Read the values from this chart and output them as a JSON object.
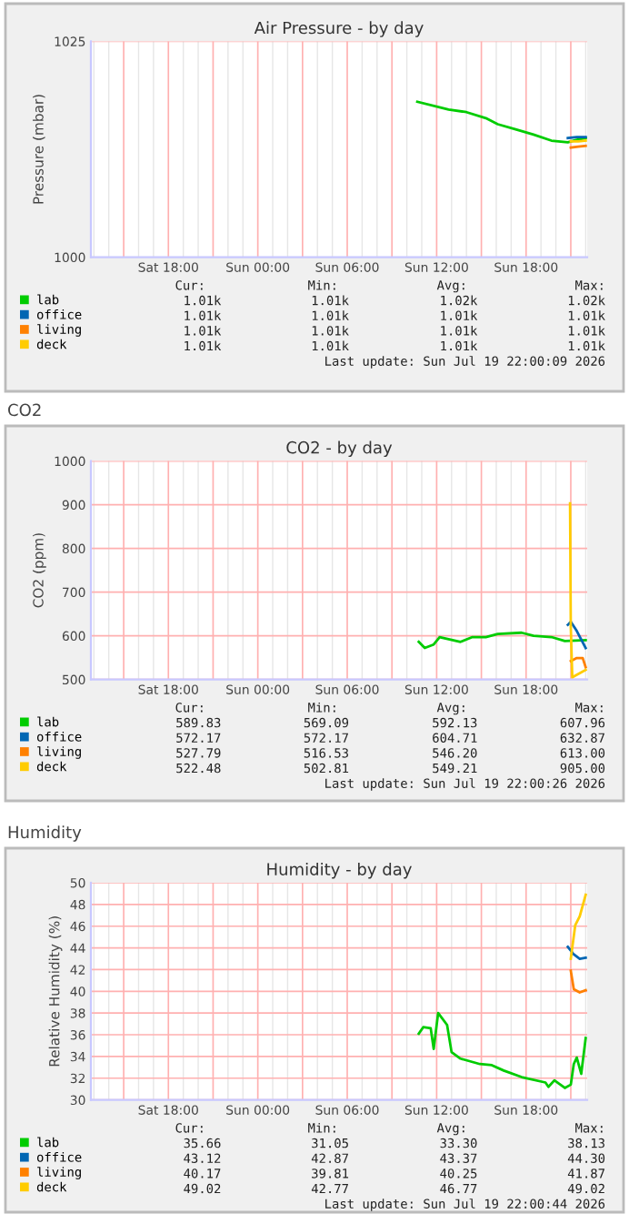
{
  "chart_data": [
    {
      "type": "line",
      "title": "Air Pressure - by day",
      "ylabel": "Pressure (mbar)",
      "xlim": [
        "2026-07-18T12:48",
        "2026-07-19T22:06"
      ],
      "ylim": [
        1000,
        1025
      ],
      "yticks": [
        1000,
        1025
      ],
      "xticks": [
        {
          "value": "2026-07-18T15:00",
          "label": null
        },
        {
          "value": "2026-07-18T18:00",
          "label": "Sat 18:00"
        },
        {
          "value": "2026-07-18T21:00",
          "label": null
        },
        {
          "value": "2026-07-19T00:00",
          "label": "Sun 00:00"
        },
        {
          "value": "2026-07-19T03:00",
          "label": null
        },
        {
          "value": "2026-07-19T06:00",
          "label": "Sun 06:00"
        },
        {
          "value": "2026-07-19T09:00",
          "label": null
        },
        {
          "value": "2026-07-19T12:00",
          "label": "Sun 12:00"
        },
        {
          "value": "2026-07-19T15:00",
          "label": null
        },
        {
          "value": "2026-07-19T18:00",
          "label": "Sun 18:00"
        },
        {
          "value": "2026-07-19T21:00",
          "label": null
        }
      ],
      "grid": "x",
      "legend": "bottom",
      "series": [
        {
          "name": "lab",
          "color": "#00cc00",
          "x": [
            "2026-07-19T10:42",
            "2026-07-19T12:48",
            "2026-07-19T14:00",
            "2026-07-19T15:18",
            "2026-07-19T16:06",
            "2026-07-19T17:18",
            "2026-07-19T18:30",
            "2026-07-19T19:42",
            "2026-07-19T20:48",
            "2026-07-19T21:24",
            "2026-07-19T22:00"
          ],
          "values": [
            1018.0,
            1017.1,
            1016.8,
            1016.1,
            1015.4,
            1014.8,
            1014.2,
            1013.5,
            1013.3,
            1013.6,
            1013.8
          ]
        },
        {
          "name": "office",
          "color": "#0066b3",
          "x": [
            "2026-07-19T20:48",
            "2026-07-19T21:24",
            "2026-07-19T22:00"
          ],
          "values": [
            1013.8,
            1013.9,
            1013.9
          ]
        },
        {
          "name": "living",
          "color": "#ff8000",
          "x": [
            "2026-07-19T21:00",
            "2026-07-19T21:30",
            "2026-07-19T22:00"
          ],
          "values": [
            1012.7,
            1012.8,
            1012.9
          ]
        },
        {
          "name": "deck",
          "color": "#ffcc00",
          "x": [
            "2026-07-19T21:00",
            "2026-07-19T21:30",
            "2026-07-19T22:00"
          ],
          "values": [
            1013.4,
            1013.4,
            1013.5
          ]
        }
      ],
      "annotations": [
        "Cur:",
        "Min:",
        "Avg:",
        "Max:",
        "1.01k",
        "1.01k",
        "1.02k",
        "1.02k",
        "1.01k",
        "1.01k",
        "1.01k",
        "1.01k",
        "1.01k",
        "1.01k",
        "1.01k",
        "1.01k",
        "1.01k",
        "1.01k",
        "1.01k",
        "1.01k",
        "Last update: Sun Jul 19 22:00:09 2026"
      ]
    },
    {
      "type": "line",
      "title": "CO2 - by day",
      "subtitle": "CO2",
      "ylabel": "CO2 (ppm)",
      "xlim": [
        "2026-07-18T12:48",
        "2026-07-19T22:06"
      ],
      "ylim": [
        500,
        1000
      ],
      "yticks": [
        500,
        600,
        700,
        800,
        900,
        1000
      ],
      "xticks": [
        {
          "value": "2026-07-18T15:00",
          "label": null
        },
        {
          "value": "2026-07-18T18:00",
          "label": "Sat 18:00"
        },
        {
          "value": "2026-07-18T21:00",
          "label": null
        },
        {
          "value": "2026-07-19T00:00",
          "label": "Sun 00:00"
        },
        {
          "value": "2026-07-19T03:00",
          "label": null
        },
        {
          "value": "2026-07-19T06:00",
          "label": "Sun 06:00"
        },
        {
          "value": "2026-07-19T09:00",
          "label": null
        },
        {
          "value": "2026-07-19T12:00",
          "label": "Sun 12:00"
        },
        {
          "value": "2026-07-19T15:00",
          "label": null
        },
        {
          "value": "2026-07-19T18:00",
          "label": "Sun 18:00"
        },
        {
          "value": "2026-07-19T21:00",
          "label": null
        }
      ],
      "grid": true,
      "legend": "bottom",
      "series": [
        {
          "name": "lab",
          "color": "#00cc00",
          "x": [
            "2026-07-19T10:48",
            "2026-07-19T11:12",
            "2026-07-19T11:48",
            "2026-07-19T12:12",
            "2026-07-19T13:36",
            "2026-07-19T14:24",
            "2026-07-19T15:18",
            "2026-07-19T16:06",
            "2026-07-19T17:42",
            "2026-07-19T18:30",
            "2026-07-19T19:42",
            "2026-07-19T20:36",
            "2026-07-19T22:00"
          ],
          "values": [
            586,
            572,
            580,
            597,
            586,
            597,
            597,
            604,
            607,
            600,
            597,
            588,
            590
          ]
        },
        {
          "name": "office",
          "color": "#0066b3",
          "x": [
            "2026-07-19T20:48",
            "2026-07-19T21:00",
            "2026-07-19T21:24",
            "2026-07-19T22:00"
          ],
          "values": [
            625,
            632,
            611,
            572
          ]
        },
        {
          "name": "living",
          "color": "#ff8000",
          "x": [
            "2026-07-19T21:00",
            "2026-07-19T21:24",
            "2026-07-19T21:48",
            "2026-07-19T22:00"
          ],
          "values": [
            542,
            549,
            549,
            528
          ]
        },
        {
          "name": "deck",
          "color": "#ffcc00",
          "x": [
            "2026-07-19T20:57",
            "2026-07-19T21:00",
            "2026-07-19T21:06",
            "2026-07-19T22:00"
          ],
          "values": [
            903,
            620,
            505,
            522
          ]
        }
      ],
      "annotations": [
        "Cur:",
        "Min:",
        "Avg:",
        "Max:",
        "589.83",
        "569.09",
        "592.13",
        "607.96",
        "572.17",
        "572.17",
        "604.71",
        "632.87",
        "527.79",
        "516.53",
        "546.20",
        "613.00",
        "522.48",
        "502.81",
        "549.21",
        "905.00",
        "Last update: Sun Jul 19 22:00:26 2026"
      ]
    },
    {
      "type": "line",
      "title": "Humidity - by day",
      "subtitle": "Humidity",
      "ylabel": "Relative Humidity (%)",
      "xlim": [
        "2026-07-18T12:48",
        "2026-07-19T22:06"
      ],
      "ylim": [
        30,
        50
      ],
      "yticks": [
        30,
        32,
        34,
        36,
        38,
        40,
        42,
        44,
        46,
        48,
        50
      ],
      "xticks": [
        {
          "value": "2026-07-18T15:00",
          "label": null
        },
        {
          "value": "2026-07-18T18:00",
          "label": "Sat 18:00"
        },
        {
          "value": "2026-07-18T21:00",
          "label": null
        },
        {
          "value": "2026-07-19T00:00",
          "label": "Sun 00:00"
        },
        {
          "value": "2026-07-19T03:00",
          "label": null
        },
        {
          "value": "2026-07-19T06:00",
          "label": "Sun 06:00"
        },
        {
          "value": "2026-07-19T09:00",
          "label": null
        },
        {
          "value": "2026-07-19T12:00",
          "label": "Sun 12:00"
        },
        {
          "value": "2026-07-19T15:00",
          "label": null
        },
        {
          "value": "2026-07-19T18:00",
          "label": "Sun 18:00"
        },
        {
          "value": "2026-07-19T21:00",
          "label": null
        }
      ],
      "grid": true,
      "legend": "bottom",
      "series": [
        {
          "name": "lab",
          "color": "#00cc00",
          "x": [
            "2026-07-19T10:48",
            "2026-07-19T11:06",
            "2026-07-19T11:36",
            "2026-07-19T11:48",
            "2026-07-19T12:06",
            "2026-07-19T12:42",
            "2026-07-19T13:00",
            "2026-07-19T13:36",
            "2026-07-19T14:54",
            "2026-07-19T15:42",
            "2026-07-19T16:30",
            "2026-07-19T17:42",
            "2026-07-19T19:18",
            "2026-07-19T19:30",
            "2026-07-19T19:54",
            "2026-07-19T20:36",
            "2026-07-19T21:00",
            "2026-07-19T21:12",
            "2026-07-19T21:24",
            "2026-07-19T21:42",
            "2026-07-19T22:00"
          ],
          "values": [
            36.1,
            36.7,
            36.6,
            34.7,
            38.0,
            36.9,
            34.4,
            33.8,
            33.3,
            33.2,
            32.7,
            32.1,
            31.6,
            31.2,
            31.8,
            31.1,
            31.4,
            33.3,
            33.9,
            32.4,
            35.7
          ]
        },
        {
          "name": "office",
          "color": "#0066b3",
          "x": [
            "2026-07-19T20:48",
            "2026-07-19T21:12",
            "2026-07-19T21:36",
            "2026-07-19T22:00"
          ],
          "values": [
            44.1,
            43.4,
            43.0,
            43.1
          ]
        },
        {
          "name": "living",
          "color": "#ff8000",
          "x": [
            "2026-07-19T21:00",
            "2026-07-19T21:12",
            "2026-07-19T21:36",
            "2026-07-19T22:00"
          ],
          "values": [
            41.9,
            40.2,
            39.9,
            40.1
          ]
        },
        {
          "name": "deck",
          "color": "#ffcc00",
          "x": [
            "2026-07-19T21:00",
            "2026-07-19T21:18",
            "2026-07-19T21:36",
            "2026-07-19T22:00"
          ],
          "values": [
            43.0,
            46.1,
            46.9,
            48.9
          ]
        }
      ],
      "annotations": [
        "Cur:",
        "Min:",
        "Avg:",
        "Max:",
        "35.66",
        "31.05",
        "33.30",
        "38.13",
        "43.12",
        "42.87",
        "43.37",
        "44.30",
        "40.17",
        "39.81",
        "40.25",
        "41.87",
        "49.02",
        "42.77",
        "46.77",
        "49.02",
        "Last update: Sun Jul 19 22:00:44 2026"
      ]
    }
  ]
}
